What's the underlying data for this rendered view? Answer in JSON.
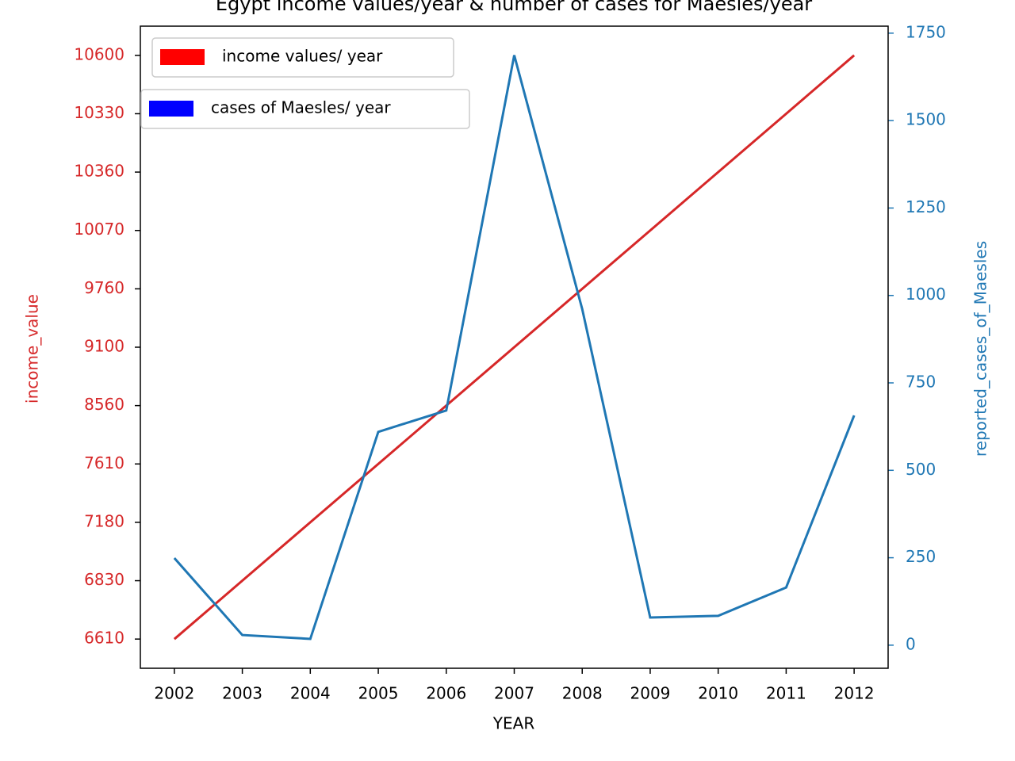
{
  "chart_data": {
    "type": "line",
    "title": "Egypt income values/year & number of cases for Maesles/year",
    "xlabel": "YEAR",
    "ylabel": "income_value",
    "y2label": "reported_cases_of_Maesles",
    "categories": [
      "2002",
      "2003",
      "2004",
      "2005",
      "2006",
      "2007",
      "2008",
      "2009",
      "2010",
      "2011",
      "2012"
    ],
    "yscale": "category",
    "y2lim": [
      -66,
      1770
    ],
    "y2ticks": [
      0,
      250,
      500,
      750,
      1000,
      1250,
      1500,
      1750
    ],
    "series": [
      {
        "name": "income values/ year",
        "color": "#d62728",
        "legend_color": "#ff0000",
        "axis": "y",
        "values": [
          6610,
          6830,
          7180,
          7610,
          8560,
          9100,
          9760,
          10070,
          10360,
          10330,
          10600
        ]
      },
      {
        "name": "cases of Maesles/ year",
        "color": "#1f77b4",
        "legend_color": "#0000ff",
        "axis": "y2",
        "values": [
          249,
          29,
          18,
          610,
          671,
          1687,
          961,
          79,
          84,
          165,
          657
        ]
      }
    ]
  }
}
